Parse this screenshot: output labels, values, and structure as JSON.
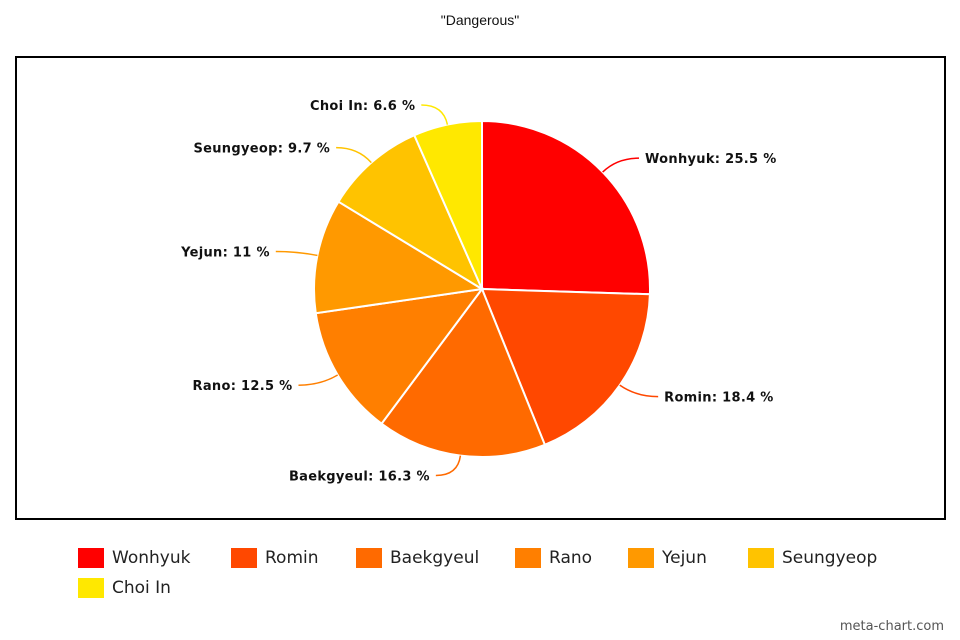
{
  "chart_data": {
    "type": "pie",
    "title": "\"Dangerous\"",
    "unit": "%",
    "slices": [
      {
        "label": "Wonhyuk",
        "value": 25.5,
        "display": "Wonhyuk: 25.5 %",
        "color": "#ff0000"
      },
      {
        "label": "Romin",
        "value": 18.4,
        "display": "Romin: 18.4 %",
        "color": "#ff4800"
      },
      {
        "label": "Baekgyeul",
        "value": 16.3,
        "display": "Baekgyeul: 16.3 %",
        "color": "#ff6a00"
      },
      {
        "label": "Rano",
        "value": 12.5,
        "display": "Rano: 12.5 %",
        "color": "#ff7f00"
      },
      {
        "label": "Yejun",
        "value": 11,
        "display": "Yejun: 11 %",
        "color": "#ff9900"
      },
      {
        "label": "Seungyeop",
        "value": 9.7,
        "display": "Seungyeop: 9.7 %",
        "color": "#ffc300"
      },
      {
        "label": "Choi In",
        "value": 6.6,
        "display": "Choi In: 6.6 %",
        "color": "#ffe800"
      }
    ],
    "legend_position": "bottom"
  },
  "credit": "meta-chart.com"
}
